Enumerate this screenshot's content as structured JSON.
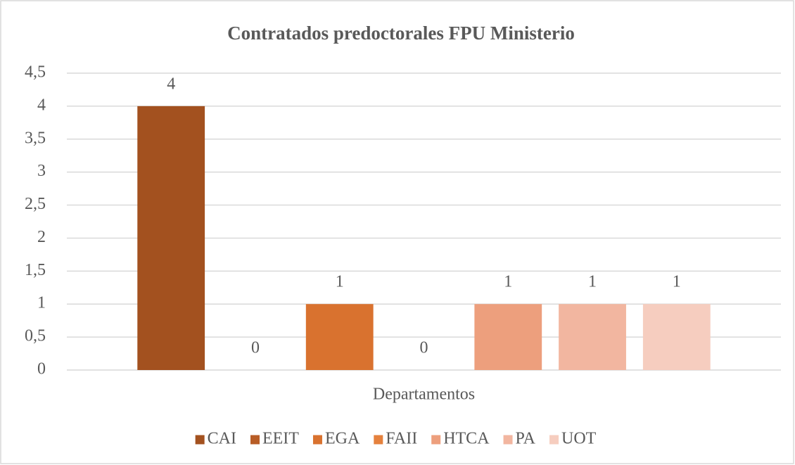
{
  "chart_data": {
    "type": "bar",
    "title": "Contratados  predoctorales FPU Ministerio",
    "categories": [
      "Departamentos"
    ],
    "series": [
      {
        "name": "CAI",
        "color": "#a3511f",
        "values": [
          4
        ]
      },
      {
        "name": "EEIT",
        "color": "#b85d26",
        "values": [
          0
        ]
      },
      {
        "name": "EGA",
        "color": "#d9722f",
        "values": [
          1
        ]
      },
      {
        "name": "FAII",
        "color": "#e5813d",
        "values": [
          0
        ]
      },
      {
        "name": "HTCA",
        "color": "#ed9f7d",
        "values": [
          1
        ]
      },
      {
        "name": "PA",
        "color": "#f2b6a0",
        "values": [
          1
        ]
      },
      {
        "name": "UOT",
        "color": "#f6cdbf",
        "values": [
          1
        ]
      }
    ],
    "ylim": [
      0,
      4.5
    ],
    "yticks": [
      0,
      {
        "value": 0.5,
        "label": "0,5"
      },
      1,
      {
        "value": 1.5,
        "label": "1,5"
      },
      2,
      {
        "value": 2.5,
        "label": "2,5"
      },
      3,
      {
        "value": 3.5,
        "label": "3,5"
      },
      4,
      {
        "value": 4.5,
        "label": "4,5"
      }
    ],
    "grid": true,
    "legend": "bottom"
  }
}
